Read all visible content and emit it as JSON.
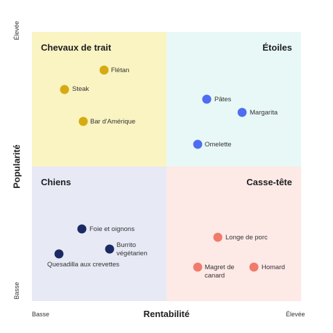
{
  "colors": {
    "chevaux": "#d6aa12",
    "etoiles": "#4f6df0",
    "chiens": "#1c2a63",
    "casse": "#f07a6c"
  },
  "quadrants": {
    "tl": "Chevaux de trait",
    "tr": "Étoiles",
    "bl": "Chiens",
    "br": "Casse-tête"
  },
  "axes": {
    "x_title": "Rentabilité",
    "y_title": "Popularité",
    "x_low": "Basse",
    "x_high": "Élevée",
    "y_low": "Basse",
    "y_high": "Élevée"
  },
  "items": [
    {
      "label": "Flétan",
      "group": "chevaux"
    },
    {
      "label": "Steak",
      "group": "chevaux"
    },
    {
      "label": "Bar d'Amérique",
      "group": "chevaux"
    },
    {
      "label": "Pâtes",
      "group": "etoiles"
    },
    {
      "label": "Margarita",
      "group": "etoiles"
    },
    {
      "label": "Omelette",
      "group": "etoiles"
    },
    {
      "label": "Foie et oignons",
      "group": "chiens"
    },
    {
      "label": "Burrito végétarien",
      "group": "chiens"
    },
    {
      "label": "Quesadilla aux crevettes",
      "group": "chiens"
    },
    {
      "label": "Longe de porc",
      "group": "casse"
    },
    {
      "label": "Magret de canard",
      "group": "casse"
    },
    {
      "label": "Homard",
      "group": "casse"
    }
  ]
}
